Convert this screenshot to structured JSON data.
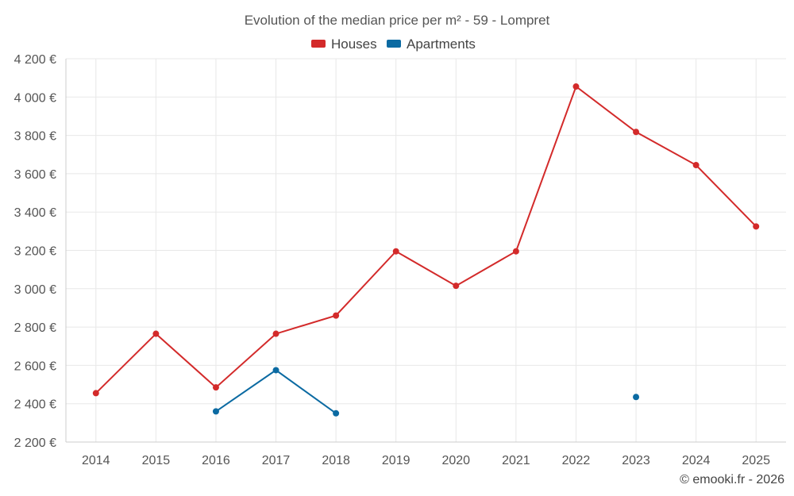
{
  "chart_data": {
    "type": "line",
    "title": "Evolution of the median price per m² - 59 - Lompret",
    "categories": [
      "2014",
      "2015",
      "2016",
      "2017",
      "2018",
      "2019",
      "2020",
      "2021",
      "2022",
      "2023",
      "2024",
      "2025"
    ],
    "ylim": [
      2200,
      4200
    ],
    "yticks": [
      2200,
      2400,
      2600,
      2800,
      3000,
      3200,
      3400,
      3600,
      3800,
      4000,
      4200
    ],
    "ytick_labels": [
      "2 200 €",
      "2 400 €",
      "2 600 €",
      "2 800 €",
      "3 000 €",
      "3 200 €",
      "3 400 €",
      "3 600 €",
      "3 800 €",
      "4 000 €",
      "4 200 €"
    ],
    "xlabel": "",
    "ylabel": "",
    "grid": true,
    "legend_position": "top-center",
    "series": [
      {
        "name": "Houses",
        "color": "#d32a2a",
        "values": [
          2455,
          2765,
          2485,
          2765,
          2860,
          3195,
          3015,
          3195,
          4055,
          3818,
          3645,
          3325
        ]
      },
      {
        "name": "Apartments",
        "color": "#0b6aa2",
        "values": [
          null,
          null,
          2360,
          2575,
          2350,
          null,
          null,
          null,
          null,
          2435,
          null,
          null
        ]
      }
    ]
  },
  "credit": "© emooki.fr - 2026"
}
